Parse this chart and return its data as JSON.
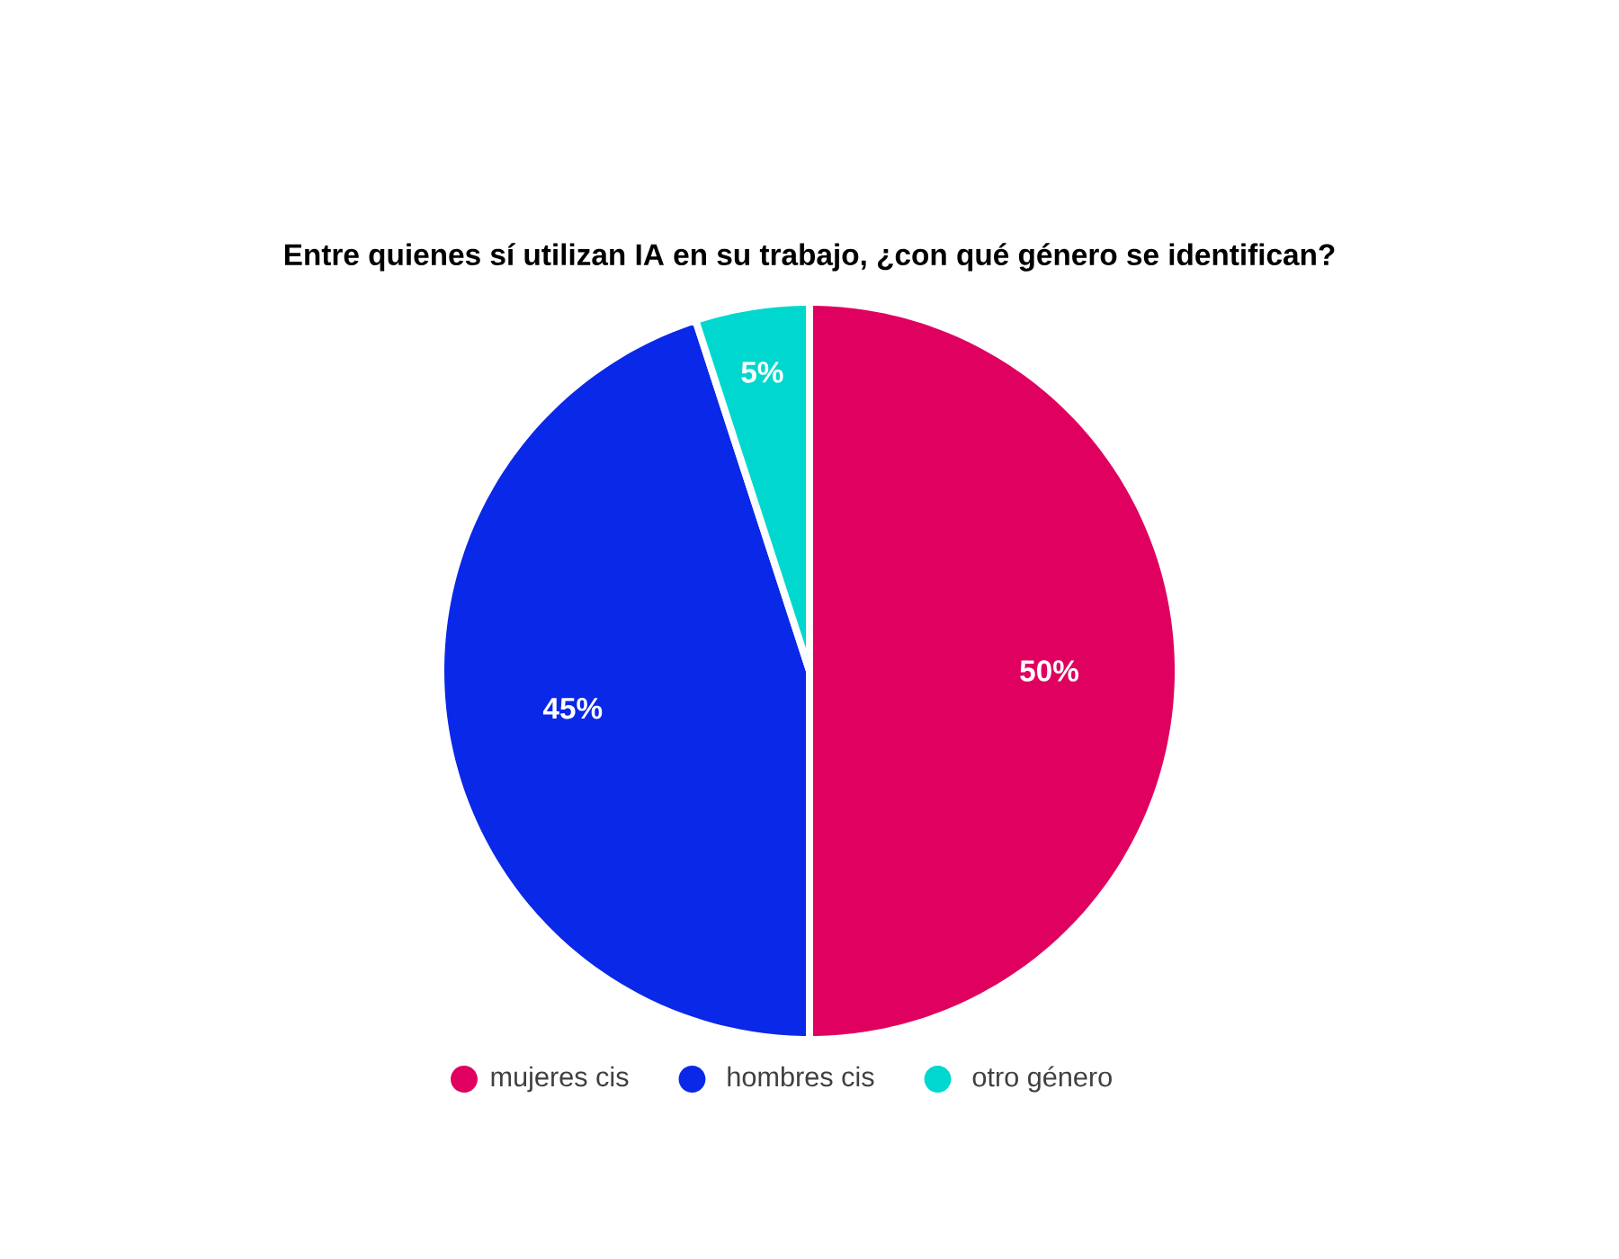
{
  "chart_data": {
    "type": "pie",
    "title": "Entre quienes sí utilizan IA en su trabajo, ¿con qué género se identifican?",
    "categories": [
      "mujeres cis",
      "hombres cis",
      "otro género"
    ],
    "values": [
      50,
      45,
      5
    ],
    "value_labels": [
      "50%",
      "45%",
      "5%"
    ],
    "colors": [
      "#e0005f",
      "#0a28e8",
      "#00d8cf"
    ],
    "legend": "bottom"
  }
}
